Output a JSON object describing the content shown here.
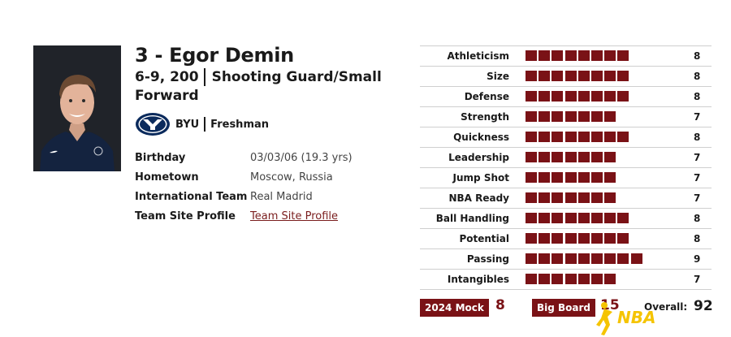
{
  "player": {
    "name": "3 - Egor Demin",
    "height_weight": "6-9, 200",
    "position_line1": "Shooting Guard/Small",
    "position_line2": "Forward",
    "school": "BYU",
    "class": "Freshman"
  },
  "info": [
    {
      "label": "Birthday",
      "value": "03/03/06 (19.3 yrs)"
    },
    {
      "label": "Hometown",
      "value": "Moscow, Russia"
    },
    {
      "label": "International Team",
      "value": "Real Madrid"
    },
    {
      "label": "Team Site Profile",
      "value": "Team Site Profile"
    }
  ],
  "ratings": [
    {
      "label": "Athleticism",
      "value": "8",
      "level": 8
    },
    {
      "label": "Size",
      "value": "8",
      "level": 8
    },
    {
      "label": "Defense",
      "value": "8",
      "level": 8
    },
    {
      "label": "Strength",
      "value": "7",
      "level": 7
    },
    {
      "label": "Quickness",
      "value": "8",
      "level": 8
    },
    {
      "label": "Leadership",
      "value": "7",
      "level": 7
    },
    {
      "label": "Jump Shot",
      "value": "7",
      "level": 7
    },
    {
      "label": "NBA Ready",
      "value": "7",
      "level": 7
    },
    {
      "label": "Ball Handling",
      "value": "8",
      "level": 8
    },
    {
      "label": "Potential",
      "value": "8",
      "level": 8
    },
    {
      "label": "Passing",
      "value": "9",
      "level": 9
    },
    {
      "label": "Intangibles",
      "value": "7",
      "level": 7
    }
  ],
  "footer": {
    "mock_label": "2024 Mock",
    "mock_value": "8",
    "bigboard_label": "Big Board",
    "bigboard_value": "15",
    "overall_label": "Overall:",
    "overall_value": "92"
  },
  "watermark_text": "NBA",
  "colors": {
    "accent": "#7a1216",
    "link": "#7a1d1d",
    "byu_navy": "#0a2a5c",
    "watermark": "#f5c400"
  },
  "icons": {
    "school_logo": "byu-logo-icon",
    "watermark": "nba-logo-icon"
  }
}
